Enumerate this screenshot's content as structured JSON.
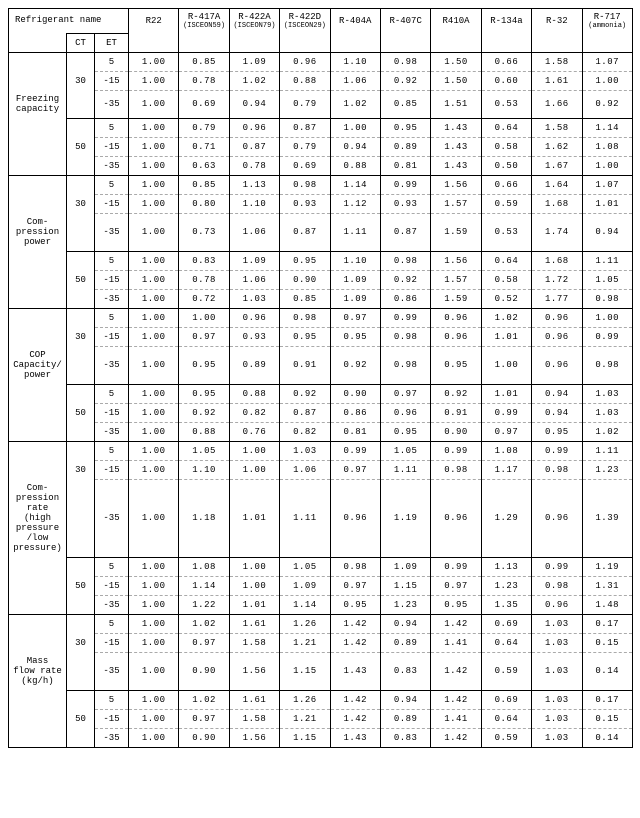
{
  "header": {
    "refrigerant_name_label": "Refrigerant name",
    "ct_label": "CT",
    "et_label": "ET",
    "columns": [
      {
        "main": "R22",
        "sub": ""
      },
      {
        "main": "R-417A",
        "sub": "(ISCEON59)"
      },
      {
        "main": "R-422A",
        "sub": "(ISCEON79)"
      },
      {
        "main": "R-422D",
        "sub": "(ISCEON29)"
      },
      {
        "main": "R-404A",
        "sub": ""
      },
      {
        "main": "R-407C",
        "sub": ""
      },
      {
        "main": "R410A",
        "sub": ""
      },
      {
        "main": "R-134a",
        "sub": ""
      },
      {
        "main": "R-32",
        "sub": ""
      },
      {
        "main": "R-717",
        "sub": "(ammonia)"
      }
    ]
  },
  "sections": [
    {
      "prop": "Freezing\ncapacity",
      "groups": [
        {
          "ct": "30",
          "rows": [
            {
              "et": "5",
              "v": [
                "1.00",
                "0.85",
                "1.09",
                "0.96",
                "1.10",
                "0.98",
                "1.50",
                "0.66",
                "1.58",
                "1.07"
              ]
            },
            {
              "et": "-15",
              "v": [
                "1.00",
                "0.78",
                "1.02",
                "0.88",
                "1.06",
                "0.92",
                "1.50",
                "0.60",
                "1.61",
                "1.00"
              ]
            },
            {
              "et": "-35",
              "v": [
                "1.00",
                "0.69",
                "0.94",
                "0.79",
                "1.02",
                "0.85",
                "1.51",
                "0.53",
                "1.66",
                "0.92"
              ]
            }
          ]
        },
        {
          "ct": "50",
          "rows": [
            {
              "et": "5",
              "v": [
                "1.00",
                "0.79",
                "0.96",
                "0.87",
                "1.00",
                "0.95",
                "1.43",
                "0.64",
                "1.58",
                "1.14"
              ]
            },
            {
              "et": "-15",
              "v": [
                "1.00",
                "0.71",
                "0.87",
                "0.79",
                "0.94",
                "0.89",
                "1.43",
                "0.58",
                "1.62",
                "1.08"
              ]
            },
            {
              "et": "-35",
              "v": [
                "1.00",
                "0.63",
                "0.78",
                "0.69",
                "0.88",
                "0.81",
                "1.43",
                "0.50",
                "1.67",
                "1.00"
              ]
            }
          ]
        }
      ]
    },
    {
      "prop": "Com-\npression\npower",
      "groups": [
        {
          "ct": "30",
          "rows": [
            {
              "et": "5",
              "v": [
                "1.00",
                "0.85",
                "1.13",
                "0.98",
                "1.14",
                "0.99",
                "1.56",
                "0.66",
                "1.64",
                "1.07"
              ]
            },
            {
              "et": "-15",
              "v": [
                "1.00",
                "0.80",
                "1.10",
                "0.93",
                "1.12",
                "0.93",
                "1.57",
                "0.59",
                "1.68",
                "1.01"
              ]
            },
            {
              "et": "-35",
              "v": [
                "1.00",
                "0.73",
                "1.06",
                "0.87",
                "1.11",
                "0.87",
                "1.59",
                "0.53",
                "1.74",
                "0.94"
              ]
            }
          ]
        },
        {
          "ct": "50",
          "rows": [
            {
              "et": "5",
              "v": [
                "1.00",
                "0.83",
                "1.09",
                "0.95",
                "1.10",
                "0.98",
                "1.56",
                "0.64",
                "1.68",
                "1.11"
              ]
            },
            {
              "et": "-15",
              "v": [
                "1.00",
                "0.78",
                "1.06",
                "0.90",
                "1.09",
                "0.92",
                "1.57",
                "0.58",
                "1.72",
                "1.05"
              ]
            },
            {
              "et": "-35",
              "v": [
                "1.00",
                "0.72",
                "1.03",
                "0.85",
                "1.09",
                "0.86",
                "1.59",
                "0.52",
                "1.77",
                "0.98"
              ]
            }
          ]
        }
      ]
    },
    {
      "prop": "COP\n\nCapacity/\npower",
      "groups": [
        {
          "ct": "30",
          "rows": [
            {
              "et": "5",
              "v": [
                "1.00",
                "1.00",
                "0.96",
                "0.98",
                "0.97",
                "0.99",
                "0.96",
                "1.02",
                "0.96",
                "1.00"
              ]
            },
            {
              "et": "-15",
              "v": [
                "1.00",
                "0.97",
                "0.93",
                "0.95",
                "0.95",
                "0.98",
                "0.96",
                "1.01",
                "0.96",
                "0.99"
              ]
            },
            {
              "et": "-35",
              "v": [
                "1.00",
                "0.95",
                "0.89",
                "0.91",
                "0.92",
                "0.98",
                "0.95",
                "1.00",
                "0.96",
                "0.98"
              ]
            }
          ]
        },
        {
          "ct": "50",
          "rows": [
            {
              "et": "5",
              "v": [
                "1.00",
                "0.95",
                "0.88",
                "0.92",
                "0.90",
                "0.97",
                "0.92",
                "1.01",
                "0.94",
                "1.03"
              ]
            },
            {
              "et": "-15",
              "v": [
                "1.00",
                "0.92",
                "0.82",
                "0.87",
                "0.86",
                "0.96",
                "0.91",
                "0.99",
                "0.94",
                "1.03"
              ]
            },
            {
              "et": "-35",
              "v": [
                "1.00",
                "0.88",
                "0.76",
                "0.82",
                "0.81",
                "0.95",
                "0.90",
                "0.97",
                "0.95",
                "1.02"
              ]
            }
          ]
        }
      ]
    },
    {
      "prop": "Com-\npression\nrate\n(high\npressure\n/low\npressure)",
      "groups": [
        {
          "ct": "30",
          "rows": [
            {
              "et": "5",
              "v": [
                "1.00",
                "1.05",
                "1.00",
                "1.03",
                "0.99",
                "1.05",
                "0.99",
                "1.08",
                "0.99",
                "1.11"
              ]
            },
            {
              "et": "-15",
              "v": [
                "1.00",
                "1.10",
                "1.00",
                "1.06",
                "0.97",
                "1.11",
                "0.98",
                "1.17",
                "0.98",
                "1.23"
              ]
            },
            {
              "et": "-35",
              "v": [
                "1.00",
                "1.18",
                "1.01",
                "1.11",
                "0.96",
                "1.19",
                "0.96",
                "1.29",
                "0.96",
                "1.39"
              ]
            }
          ]
        },
        {
          "ct": "50",
          "rows": [
            {
              "et": "5",
              "v": [
                "1.00",
                "1.08",
                "1.00",
                "1.05",
                "0.98",
                "1.09",
                "0.99",
                "1.13",
                "0.99",
                "1.19"
              ]
            },
            {
              "et": "-15",
              "v": [
                "1.00",
                "1.14",
                "1.00",
                "1.09",
                "0.97",
                "1.15",
                "0.97",
                "1.23",
                "0.98",
                "1.31"
              ]
            },
            {
              "et": "-35",
              "v": [
                "1.00",
                "1.22",
                "1.01",
                "1.14",
                "0.95",
                "1.23",
                "0.95",
                "1.35",
                "0.96",
                "1.48"
              ]
            }
          ]
        }
      ]
    },
    {
      "prop": "Mass\nflow rate\n\n(kg/h)",
      "groups": [
        {
          "ct": "30",
          "rows": [
            {
              "et": "5",
              "v": [
                "1.00",
                "1.02",
                "1.61",
                "1.26",
                "1.42",
                "0.94",
                "1.42",
                "0.69",
                "1.03",
                "0.17"
              ]
            },
            {
              "et": "-15",
              "v": [
                "1.00",
                "0.97",
                "1.58",
                "1.21",
                "1.42",
                "0.89",
                "1.41",
                "0.64",
                "1.03",
                "0.15"
              ]
            },
            {
              "et": "-35",
              "v": [
                "1.00",
                "0.90",
                "1.56",
                "1.15",
                "1.43",
                "0.83",
                "1.42",
                "0.59",
                "1.03",
                "0.14"
              ]
            }
          ]
        },
        {
          "ct": "50",
          "rows": [
            {
              "et": "5",
              "v": [
                "1.00",
                "1.02",
                "1.61",
                "1.26",
                "1.42",
                "0.94",
                "1.42",
                "0.69",
                "1.03",
                "0.17"
              ]
            },
            {
              "et": "-15",
              "v": [
                "1.00",
                "0.97",
                "1.58",
                "1.21",
                "1.42",
                "0.89",
                "1.41",
                "0.64",
                "1.03",
                "0.15"
              ]
            },
            {
              "et": "-35",
              "v": [
                "1.00",
                "0.90",
                "1.56",
                "1.15",
                "1.43",
                "0.83",
                "1.42",
                "0.59",
                "1.03",
                "0.14"
              ]
            }
          ]
        }
      ]
    }
  ]
}
